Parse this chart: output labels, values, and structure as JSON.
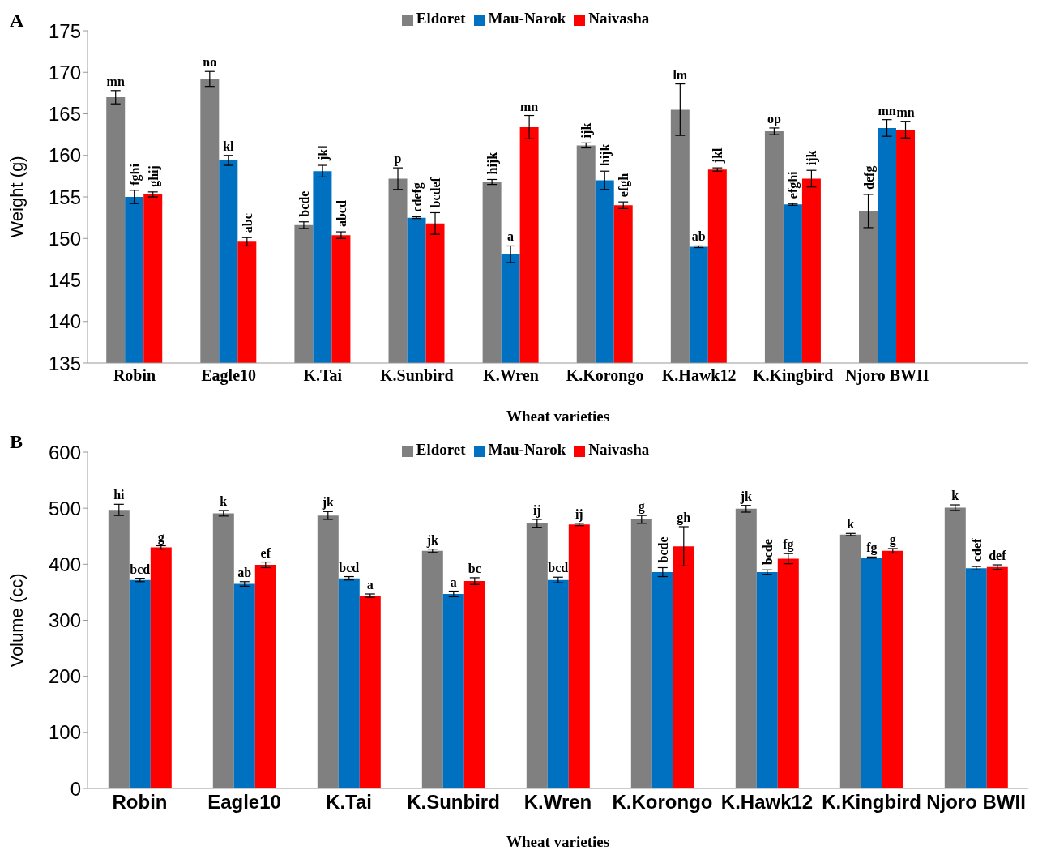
{
  "chart_data": [
    {
      "type": "bar",
      "title": "A",
      "xlabel": "Wheat varieties",
      "ylabel": "Weight (g)",
      "categories": [
        "Robin",
        "Eagle10",
        "K.Tai",
        "K.Sunbird",
        "K.Wren",
        "K.Korongo",
        "K.Hawk12",
        "K.Kingbird",
        "Njoro BWII",
        null
      ],
      "ylim": [
        135,
        175
      ],
      "yticks": [
        135,
        140,
        145,
        150,
        155,
        160,
        165,
        170,
        175
      ],
      "legend": "top",
      "series": [
        {
          "name": "Eldoret",
          "color": "#808080",
          "values": [
            167,
            169.2,
            151.6,
            157.2,
            156.8,
            161.2,
            165.5,
            162.9,
            153.3,
            null
          ],
          "errors": [
            0.8,
            0.9,
            0.4,
            1.3,
            0.3,
            0.3,
            3.1,
            0.4,
            2.0,
            null
          ],
          "value_labels": [
            "mn",
            "no",
            "bcde",
            "p",
            "hijk",
            "ijk",
            "lm",
            "op",
            "defg",
            null
          ]
        },
        {
          "name": "Mau-Narok",
          "color": "#0070c0",
          "values": [
            155,
            159.4,
            158.1,
            152.5,
            148.1,
            157,
            149,
            154.1,
            163.3,
            null
          ],
          "errors": [
            0.8,
            0.6,
            0.7,
            0.1,
            1.0,
            1.1,
            0.1,
            0.1,
            1.0,
            null
          ],
          "value_labels": [
            "fghi",
            "kl",
            "jkl",
            "cdefg",
            "a",
            "hijk",
            "ab",
            "efghi",
            "mn",
            null
          ]
        },
        {
          "name": "Naivasha",
          "color": "#ff0000",
          "values": [
            155.3,
            149.6,
            150.4,
            151.8,
            163.4,
            154,
            158.3,
            157.2,
            163.1,
            null
          ],
          "errors": [
            0.3,
            0.5,
            0.4,
            1.3,
            1.4,
            0.4,
            0.2,
            1.0,
            1.0,
            null
          ],
          "value_labels": [
            "ghij",
            "abc",
            "abcd",
            "bcdef",
            "mn",
            "efgh",
            "jkl",
            "ijk",
            "mn",
            null
          ]
        }
      ]
    },
    {
      "type": "bar",
      "title": "B",
      "xlabel": "Wheat varieties",
      "ylabel": "Volume (cc)",
      "categories": [
        "Robin",
        "Eagle10",
        "K.Tai",
        "K.Sunbird",
        "K.Wren",
        "K.Korongo",
        "K.Hawk12",
        "K.Kingbird",
        "Njoro BWII"
      ],
      "ylim": [
        0,
        600
      ],
      "yticks": [
        0,
        100,
        200,
        300,
        400,
        500,
        600
      ],
      "legend": "top",
      "series": [
        {
          "name": "Eldoret",
          "color": "#808080",
          "values": [
            497,
            491,
            487,
            424,
            473,
            480,
            499,
            453,
            501
          ],
          "errors": [
            10,
            5,
            7,
            3,
            7,
            7,
            6,
            2,
            5
          ],
          "value_labels": [
            "hi",
            "k",
            "jk",
            "jk",
            "ij",
            "g",
            "jk",
            "k",
            "k"
          ]
        },
        {
          "name": "Mau-Narok",
          "color": "#0070c0",
          "values": [
            372,
            365,
            375,
            347,
            372,
            386,
            386,
            412,
            393
          ],
          "errors": [
            3,
            4,
            3,
            5,
            5,
            8,
            4,
            1,
            3
          ],
          "value_labels": [
            "bcd",
            "ab",
            "bcd",
            "a",
            "bcd",
            "bcde",
            "bcde",
            "fg",
            "cdef"
          ]
        },
        {
          "name": "Naivasha",
          "color": "#ff0000",
          "values": [
            430,
            399,
            344,
            370,
            471,
            432,
            410,
            424,
            395
          ],
          "errors": [
            3,
            5,
            3,
            6,
            2,
            35,
            9,
            4,
            4
          ],
          "value_labels": [
            "g",
            "ef",
            "a",
            "bc",
            "ij",
            "gh",
            "fg",
            "g",
            "def"
          ]
        }
      ]
    }
  ]
}
